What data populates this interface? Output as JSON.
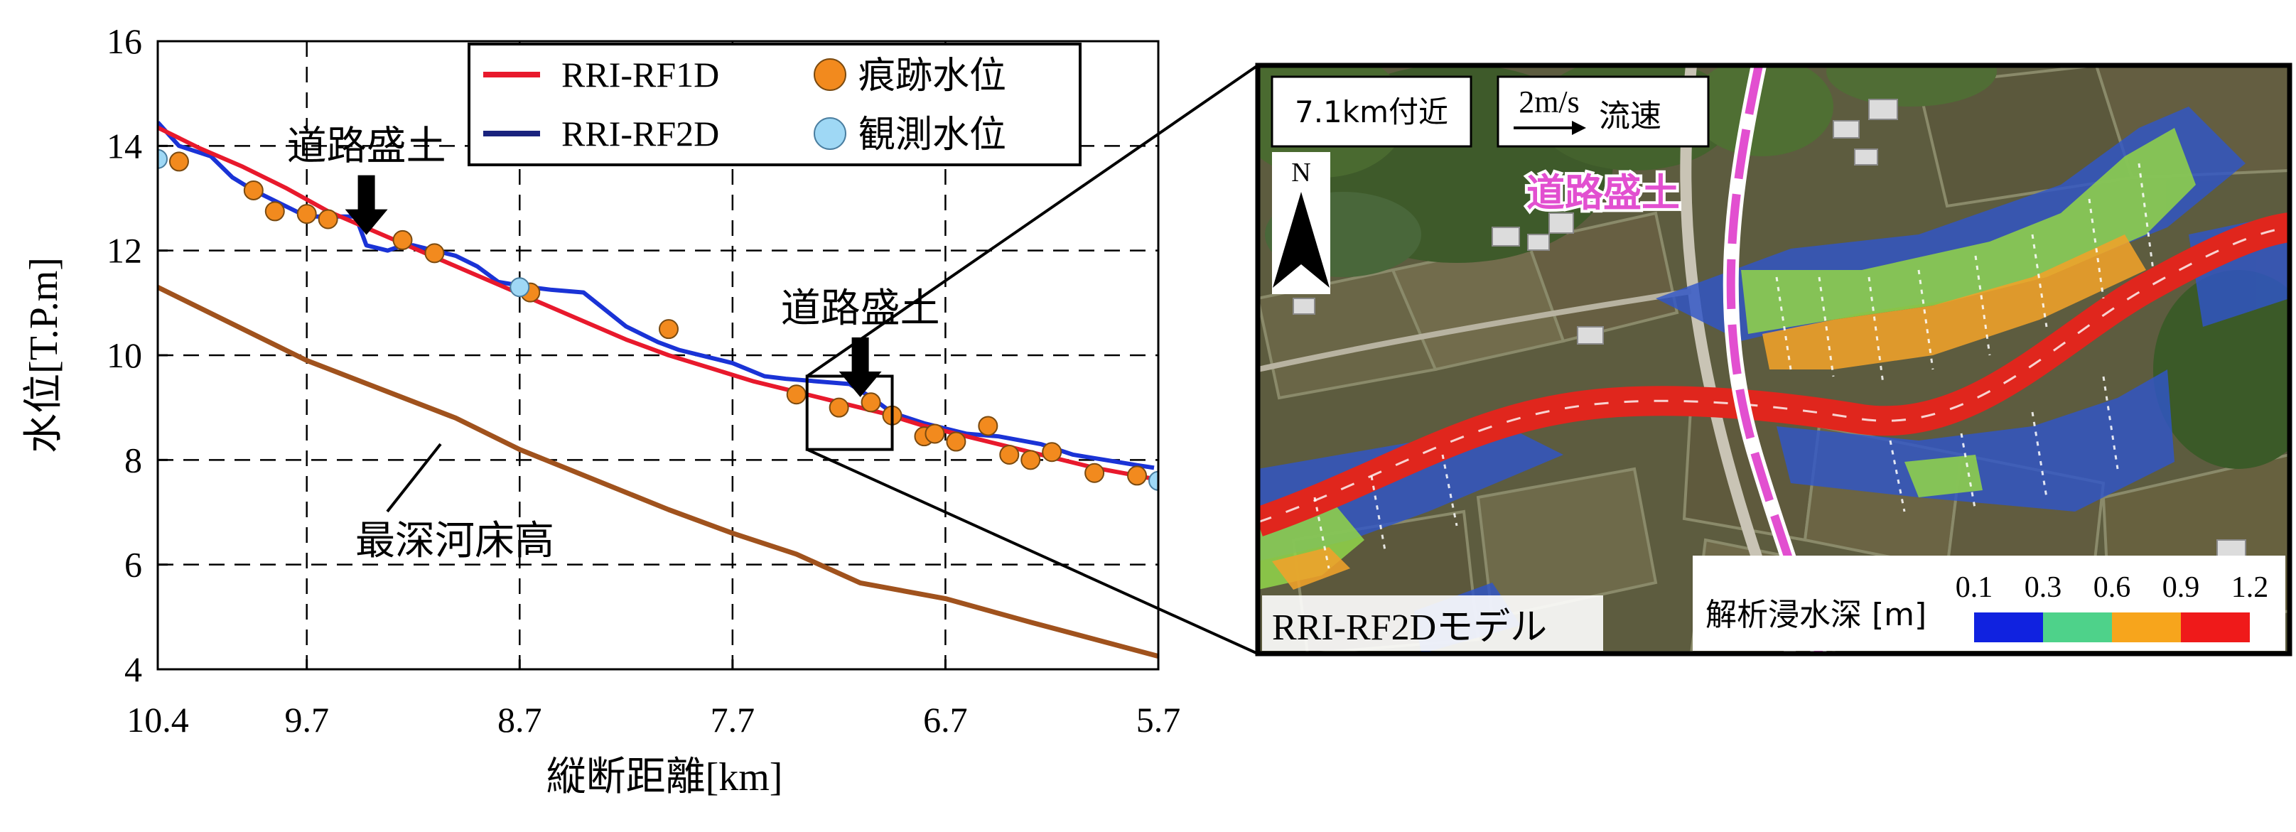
{
  "chart_data": {
    "type": "line",
    "xlabel": "縦断距離[km]",
    "ylabel": "水位[T.P.m]",
    "xlim": [
      10.4,
      5.7
    ],
    "ylim": [
      4,
      16
    ],
    "x_reversed": true,
    "grid": true,
    "xticks": [
      10.4,
      9.7,
      8.7,
      7.7,
      6.7,
      5.7
    ],
    "xtick_labels": [
      "10.4",
      "9.7",
      "8.7",
      "7.7",
      "6.7",
      "5.7"
    ],
    "yticks": [
      4,
      6,
      8,
      10,
      12,
      14,
      16
    ],
    "ytick_labels": [
      "4",
      "6",
      "8",
      "10",
      "12",
      "14",
      "16"
    ],
    "legend_position": "top-center",
    "series": [
      {
        "name": "RRI-RF1D",
        "color": "#e8192c",
        "kind": "line",
        "x": [
          10.4,
          10.2,
          10.0,
          9.8,
          9.6,
          9.4,
          9.2,
          9.0,
          8.8,
          8.6,
          8.4,
          8.2,
          8.0,
          7.8,
          7.6,
          7.4,
          7.2,
          7.0,
          6.8,
          6.6,
          6.4,
          6.2,
          6.0,
          5.8,
          5.7
        ],
        "y": [
          14.35,
          13.95,
          13.6,
          13.2,
          12.75,
          12.4,
          12.05,
          11.7,
          11.35,
          11.0,
          10.65,
          10.3,
          10.0,
          9.75,
          9.5,
          9.3,
          9.1,
          8.9,
          8.65,
          8.45,
          8.25,
          8.05,
          7.85,
          7.7,
          7.62
        ]
      },
      {
        "name": "RRI-RF2D",
        "color": "#1a33d6",
        "kind": "line",
        "x": [
          10.4,
          10.3,
          10.15,
          10.05,
          9.95,
          9.85,
          9.7,
          9.55,
          9.47,
          9.42,
          9.32,
          9.25,
          9.2,
          9.0,
          8.9,
          8.8,
          8.65,
          8.55,
          8.4,
          8.2,
          8.05,
          7.95,
          7.8,
          7.7,
          7.55,
          7.45,
          7.3,
          7.15,
          7.05,
          6.95,
          6.8,
          6.6,
          6.45,
          6.25,
          6.1,
          5.95,
          5.8,
          5.72
        ],
        "y": [
          14.45,
          14.0,
          13.8,
          13.4,
          13.15,
          12.95,
          12.65,
          12.65,
          12.65,
          12.1,
          12.0,
          12.1,
          12.1,
          11.9,
          11.7,
          11.4,
          11.3,
          11.25,
          11.2,
          10.55,
          10.25,
          10.1,
          9.95,
          9.85,
          9.6,
          9.55,
          9.5,
          9.45,
          9.2,
          8.9,
          8.7,
          8.5,
          8.45,
          8.3,
          8.1,
          8.0,
          7.9,
          7.85
        ]
      },
      {
        "name": "痕跡水位",
        "color": "#f28a1e",
        "kind": "scatter",
        "x": [
          10.3,
          9.95,
          9.85,
          9.7,
          9.6,
          9.25,
          9.1,
          8.65,
          8.0,
          7.4,
          7.2,
          7.05,
          6.95,
          6.8,
          6.75,
          6.65,
          6.5,
          6.4,
          6.3,
          6.2,
          6.0,
          5.8
        ],
        "y": [
          13.7,
          13.15,
          12.75,
          12.7,
          12.6,
          12.2,
          11.95,
          11.2,
          10.5,
          9.25,
          9.0,
          9.1,
          8.85,
          8.45,
          8.5,
          8.35,
          8.65,
          8.1,
          8.0,
          8.15,
          7.75,
          7.7
        ]
      },
      {
        "name": "観測水位",
        "color": "#9fd8f5",
        "kind": "scatter",
        "x": [
          10.4,
          8.7,
          5.7
        ],
        "y": [
          13.75,
          11.3,
          7.6
        ]
      },
      {
        "name": "",
        "color": "#a0521d",
        "kind": "line",
        "x": [
          10.4,
          9.7,
          9.0,
          8.7,
          8.0,
          7.7,
          7.4,
          7.1,
          6.7,
          6.3,
          5.7
        ],
        "y": [
          11.3,
          9.9,
          8.8,
          8.2,
          7.05,
          6.6,
          6.2,
          5.65,
          5.35,
          4.9,
          4.25
        ]
      }
    ],
    "annotations": [
      {
        "id": "embankment1",
        "text": "道路盛土",
        "x": 9.42,
        "y": 12.3
      },
      {
        "id": "embankment2",
        "text": "道路盛土",
        "x": 7.1,
        "y": 9.2
      },
      {
        "id": "bed",
        "text": "最深河床高",
        "x": 8.95,
        "y": 8.4
      }
    ],
    "zoom_box": {
      "x0": 7.35,
      "x1": 6.95,
      "y0": 8.2,
      "y1": 9.6
    }
  },
  "map_panel": {
    "label_location": "7.1km付近",
    "label_speed_value": "2m/s",
    "label_speed_text": "流速",
    "north_label": "N",
    "embankment_label": "道路盛土",
    "model_label": "RRI-RF2Dモデル",
    "depth_legend": {
      "title": "解析浸水深 [m]",
      "ticks": [
        "0.1",
        "0.3",
        "0.6",
        "0.9",
        "1.2"
      ],
      "colors": [
        "#1022e0",
        "#4ed28a",
        "#f7a51c",
        "#ef1a1a"
      ]
    }
  }
}
